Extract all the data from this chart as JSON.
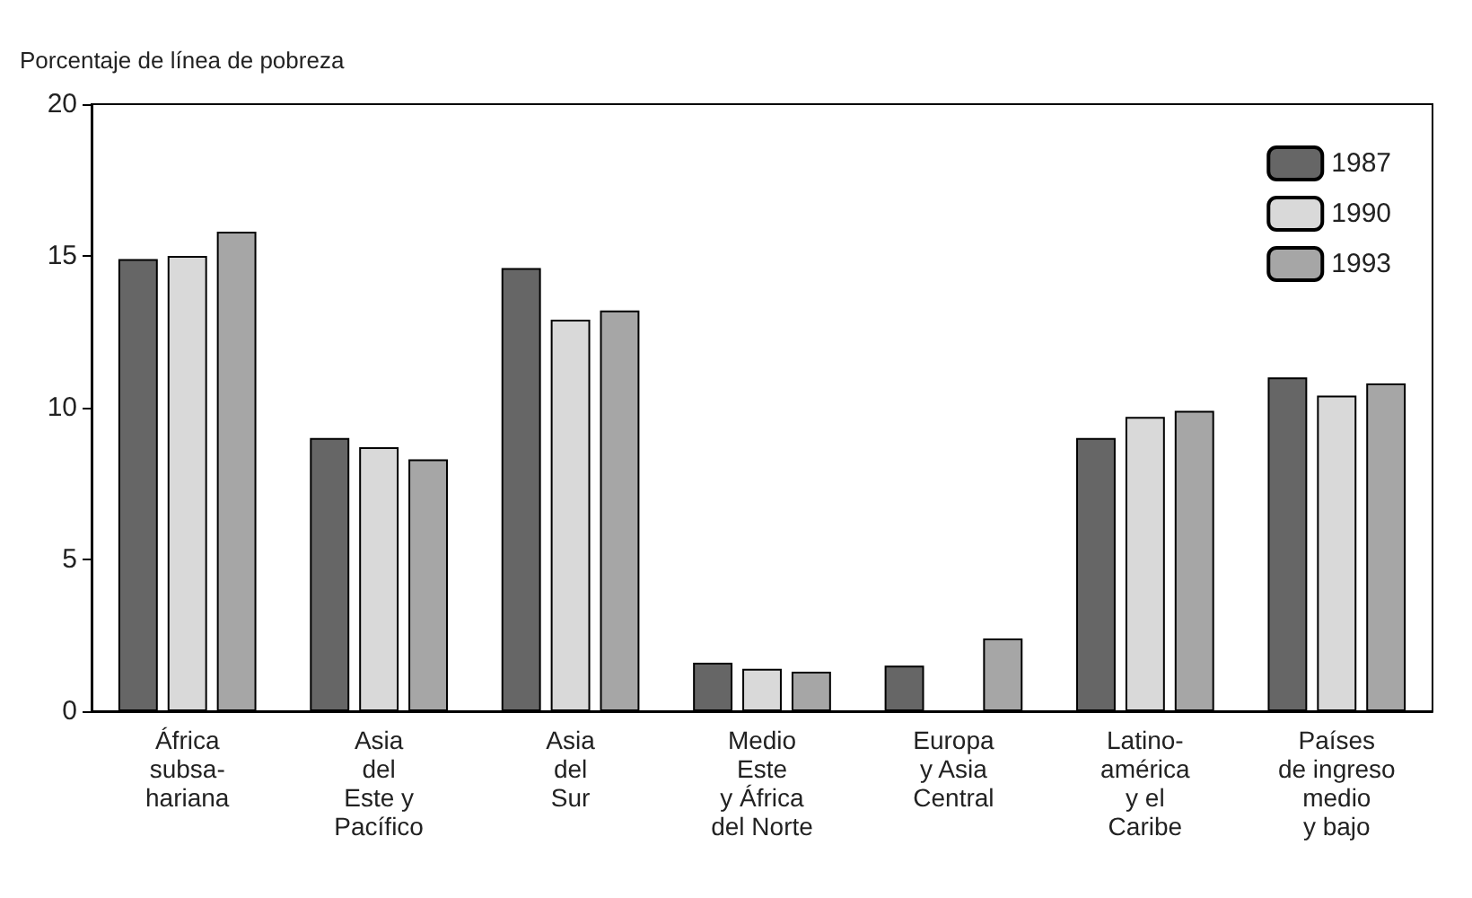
{
  "chart_data": {
    "type": "bar",
    "ylabel": "Porcentaje de línea de pobreza",
    "categories": [
      "África\nsubsa-\nhariana",
      "Asia\ndel\nEste y\nPacífico",
      "Asia\ndel\nSur",
      "Medio\nEste\ny África\ndel Norte",
      "Europa\ny Asia\nCentral",
      "Latino-\namérica\ny el\nCaribe",
      "Países\nde ingreso\nmedio\ny bajo"
    ],
    "series": [
      {
        "name": "1987",
        "color": "#666666",
        "values": [
          14.9,
          9.0,
          14.6,
          1.6,
          1.5,
          9.0,
          11.0
        ]
      },
      {
        "name": "1990",
        "color": "#d9d9d9",
        "values": [
          15.0,
          8.7,
          12.9,
          1.4,
          null,
          9.7,
          10.4
        ]
      },
      {
        "name": "1993",
        "color": "#a6a6a6",
        "values": [
          15.8,
          8.3,
          13.2,
          1.3,
          2.4,
          9.9,
          10.8
        ]
      }
    ],
    "ylim": [
      0,
      20
    ],
    "yticks": [
      0,
      5,
      10,
      15,
      20
    ],
    "grid": false,
    "legend": "top right"
  }
}
